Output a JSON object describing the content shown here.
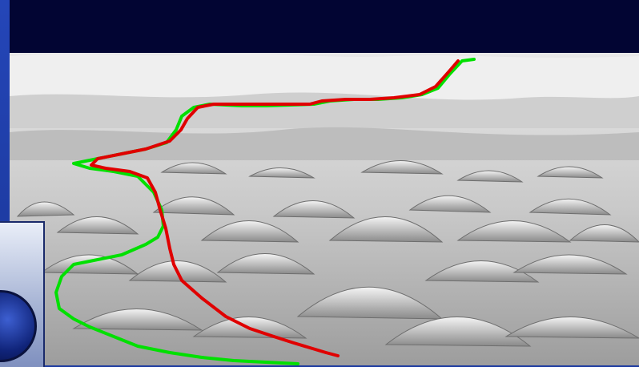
{
  "scene": {
    "sky_color": "#020533",
    "terrain_color": "#dcdcdc",
    "frame_color": "#1c3aa0"
  },
  "paths": [
    {
      "color": "#00e000"
    },
    {
      "color": "#e00000"
    }
  ],
  "icons": {
    "logo": "globe-icon"
  }
}
